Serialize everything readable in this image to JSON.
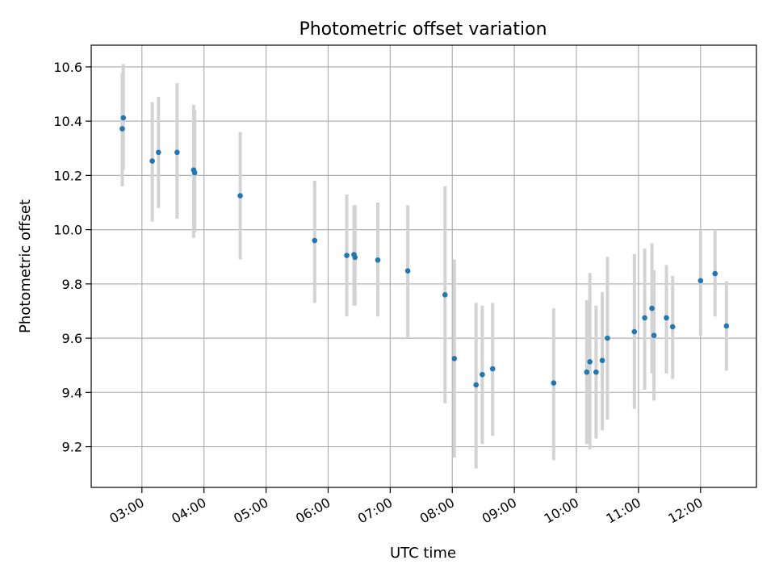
{
  "chart_data": {
    "type": "scatter",
    "title": "Photometric offset variation",
    "xlabel": "UTC time",
    "ylabel": "Photometric offset",
    "xlim": [
      "02:11",
      "12:54"
    ],
    "ylim": [
      9.05,
      10.68
    ],
    "x_ticks": [
      "03:00",
      "04:00",
      "05:00",
      "06:00",
      "07:00",
      "08:00",
      "09:00",
      "10:00",
      "11:00",
      "12:00"
    ],
    "y_ticks": [
      9.2,
      9.4,
      9.6,
      9.8,
      10.0,
      10.2,
      10.4,
      10.6
    ],
    "grid": true,
    "colors": {
      "point": "#1f77b4",
      "errorbar": "#d3d3d3",
      "grid": "#b0b0b0"
    },
    "series": [
      {
        "points": [
          {
            "x": "02:41",
            "y": 10.372,
            "lo": 10.16,
            "hi": 10.58
          },
          {
            "x": "02:42",
            "y": 10.412,
            "lo": 10.22,
            "hi": 10.61
          },
          {
            "x": "03:10",
            "y": 10.253,
            "lo": 10.03,
            "hi": 10.47
          },
          {
            "x": "03:16",
            "y": 10.285,
            "lo": 10.08,
            "hi": 10.49
          },
          {
            "x": "03:34",
            "y": 10.285,
            "lo": 10.04,
            "hi": 10.54
          },
          {
            "x": "03:50",
            "y": 10.22,
            "lo": 9.97,
            "hi": 10.46
          },
          {
            "x": "03:51",
            "y": 10.21,
            "lo": 9.99,
            "hi": 10.44
          },
          {
            "x": "04:35",
            "y": 10.125,
            "lo": 9.89,
            "hi": 10.36
          },
          {
            "x": "05:47",
            "y": 9.96,
            "lo": 9.73,
            "hi": 10.18
          },
          {
            "x": "06:18",
            "y": 9.905,
            "lo": 9.68,
            "hi": 10.13
          },
          {
            "x": "06:25",
            "y": 9.908,
            "lo": 9.72,
            "hi": 10.09
          },
          {
            "x": "06:26",
            "y": 9.898,
            "lo": 9.72,
            "hi": 10.09
          },
          {
            "x": "06:48",
            "y": 9.888,
            "lo": 9.68,
            "hi": 10.1
          },
          {
            "x": "07:17",
            "y": 9.848,
            "lo": 9.6,
            "hi": 10.09
          },
          {
            "x": "07:53",
            "y": 9.76,
            "lo": 9.36,
            "hi": 10.16
          },
          {
            "x": "08:02",
            "y": 9.525,
            "lo": 9.16,
            "hi": 9.89
          },
          {
            "x": "08:23",
            "y": 9.428,
            "lo": 9.12,
            "hi": 9.73
          },
          {
            "x": "08:29",
            "y": 9.466,
            "lo": 9.21,
            "hi": 9.72
          },
          {
            "x": "08:39",
            "y": 9.487,
            "lo": 9.24,
            "hi": 9.73
          },
          {
            "x": "09:38",
            "y": 9.435,
            "lo": 9.15,
            "hi": 9.71
          },
          {
            "x": "10:10",
            "y": 9.475,
            "lo": 9.21,
            "hi": 9.74
          },
          {
            "x": "10:13",
            "y": 9.513,
            "lo": 9.19,
            "hi": 9.84
          },
          {
            "x": "10:19",
            "y": 9.475,
            "lo": 9.23,
            "hi": 9.72
          },
          {
            "x": "10:25",
            "y": 9.518,
            "lo": 9.26,
            "hi": 9.77
          },
          {
            "x": "10:30",
            "y": 9.6,
            "lo": 9.3,
            "hi": 9.9
          },
          {
            "x": "10:56",
            "y": 9.624,
            "lo": 9.34,
            "hi": 9.91
          },
          {
            "x": "11:06",
            "y": 9.675,
            "lo": 9.41,
            "hi": 9.93
          },
          {
            "x": "11:13",
            "y": 9.71,
            "lo": 9.47,
            "hi": 9.95
          },
          {
            "x": "11:15",
            "y": 9.61,
            "lo": 9.37,
            "hi": 9.85
          },
          {
            "x": "11:27",
            "y": 9.675,
            "lo": 9.47,
            "hi": 9.87
          },
          {
            "x": "11:33",
            "y": 9.642,
            "lo": 9.45,
            "hi": 9.83
          },
          {
            "x": "12:00",
            "y": 9.812,
            "lo": 9.61,
            "hi": 10.0
          },
          {
            "x": "12:14",
            "y": 9.838,
            "lo": 9.68,
            "hi": 10.0
          },
          {
            "x": "12:25",
            "y": 9.645,
            "lo": 9.48,
            "hi": 9.81
          }
        ]
      }
    ]
  }
}
